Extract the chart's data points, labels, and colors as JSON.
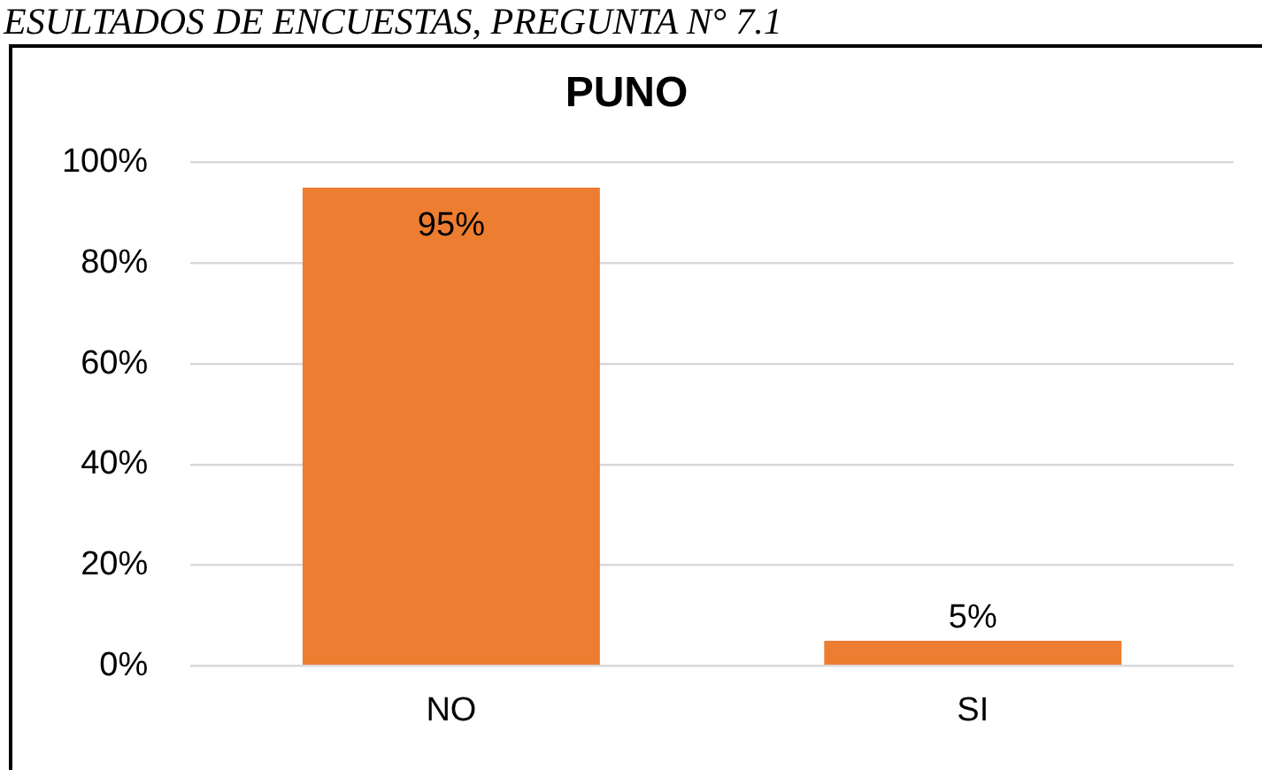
{
  "chart_data": {
    "type": "bar",
    "title": "PUNO",
    "annotations": [
      "ESULTADOS DE ENCUESTAS, PREGUNTA N° 7.1"
    ],
    "categories": [
      "NO",
      "SI"
    ],
    "values": [
      95,
      5
    ],
    "value_labels": [
      "95%",
      "5%"
    ],
    "color": "#ed7d31",
    "ylim": [
      0,
      100
    ],
    "yticks": [
      {
        "value": 0,
        "label": "0%"
      },
      {
        "value": 20,
        "label": "20%"
      },
      {
        "value": 40,
        "label": "40%"
      },
      {
        "value": 60,
        "label": "60%"
      },
      {
        "value": 80,
        "label": "80%"
      },
      {
        "value": 100,
        "label": "100%"
      }
    ],
    "grid": "y",
    "legend": false
  }
}
